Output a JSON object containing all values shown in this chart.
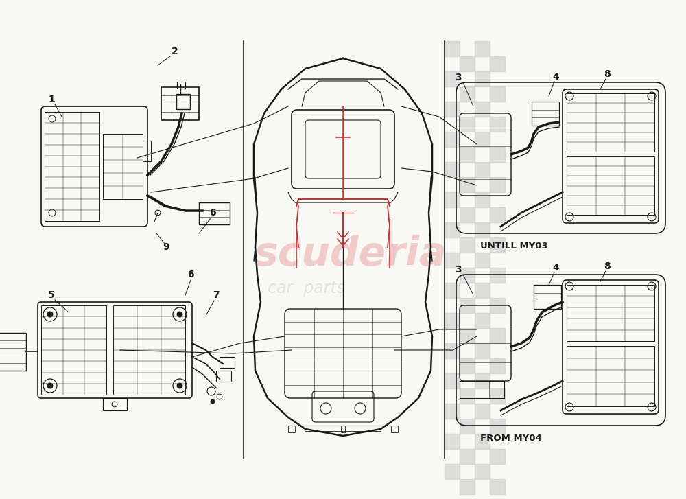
{
  "background_color": "#f8f8f4",
  "line_color": "#1a1a1a",
  "watermark_color_1": "#e8a0a0",
  "watermark_color_2": "#d4c0c0",
  "untill_label": "UNTILL MY03",
  "from_label": "FROM MY04",
  "divider_color": "#333333",
  "check_color": "#c8c8c8",
  "red_wire_color": "#c83232",
  "lw_main": 1.0,
  "lw_thin": 0.6,
  "lw_thick": 1.5
}
